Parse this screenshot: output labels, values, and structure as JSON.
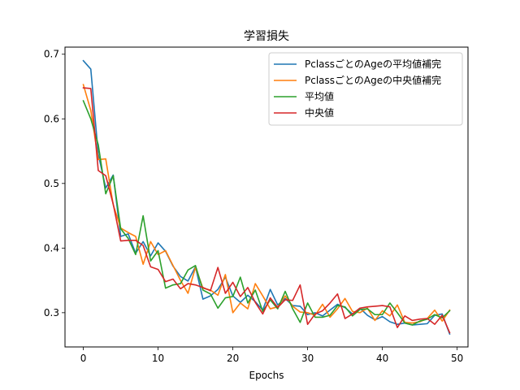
{
  "chart_data": {
    "type": "line",
    "title": "学習損失",
    "xlabel": "Epochs",
    "ylabel": "",
    "xlim": [
      -2.45,
      51.45
    ],
    "ylim": [
      0.247,
      0.711
    ],
    "xticks": [
      0,
      10,
      20,
      30,
      40,
      50
    ],
    "yticks": [
      0.3,
      0.4,
      0.5,
      0.6,
      0.7
    ],
    "grid": false,
    "legend_position": "top-right",
    "x": [
      0,
      1,
      2,
      3,
      4,
      5,
      6,
      7,
      8,
      9,
      10,
      11,
      12,
      13,
      14,
      15,
      16,
      17,
      18,
      19,
      20,
      21,
      22,
      23,
      24,
      25,
      26,
      27,
      28,
      29,
      30,
      31,
      32,
      33,
      34,
      35,
      36,
      37,
      38,
      39,
      40,
      41,
      42,
      43,
      44,
      45,
      46,
      47,
      48,
      49
    ],
    "series": [
      {
        "name": "PclassごとのAgeの平均値補完",
        "color": "#1f77b4",
        "values": [
          0.69,
          0.677,
          0.545,
          0.493,
          0.513,
          0.418,
          0.422,
          0.392,
          0.41,
          0.388,
          0.408,
          0.395,
          0.372,
          0.356,
          0.349,
          0.371,
          0.321,
          0.326,
          0.336,
          0.355,
          0.326,
          0.316,
          0.327,
          0.317,
          0.304,
          0.336,
          0.312,
          0.322,
          0.311,
          0.31,
          0.297,
          0.3,
          0.295,
          0.304,
          0.313,
          0.308,
          0.298,
          0.307,
          0.296,
          0.289,
          0.294,
          0.286,
          0.282,
          0.284,
          0.281,
          0.282,
          0.283,
          0.296,
          0.298,
          0.267
        ]
      },
      {
        "name": "PclassごとのAgeの中央値補完",
        "color": "#ff7f0e",
        "values": [
          0.653,
          0.613,
          0.537,
          0.538,
          0.467,
          0.431,
          0.424,
          0.418,
          0.375,
          0.41,
          0.39,
          0.396,
          0.373,
          0.35,
          0.33,
          0.37,
          0.338,
          0.335,
          0.327,
          0.359,
          0.3,
          0.315,
          0.306,
          0.345,
          0.326,
          0.306,
          0.309,
          0.326,
          0.31,
          0.301,
          0.3,
          0.296,
          0.313,
          0.293,
          0.306,
          0.322,
          0.302,
          0.3,
          0.307,
          0.288,
          0.303,
          0.295,
          0.312,
          0.285,
          0.284,
          0.286,
          0.291,
          0.304,
          0.287,
          0.304
        ]
      },
      {
        "name": "平均値",
        "color": "#2ca02c",
        "values": [
          0.628,
          0.6,
          0.56,
          0.484,
          0.512,
          0.43,
          0.415,
          0.39,
          0.45,
          0.38,
          0.396,
          0.338,
          0.343,
          0.345,
          0.366,
          0.373,
          0.335,
          0.329,
          0.307,
          0.323,
          0.325,
          0.355,
          0.315,
          0.335,
          0.302,
          0.32,
          0.306,
          0.333,
          0.306,
          0.285,
          0.315,
          0.293,
          0.293,
          0.296,
          0.311,
          0.309,
          0.295,
          0.305,
          0.306,
          0.297,
          0.297,
          0.315,
          0.3,
          0.284,
          0.281,
          0.287,
          0.29,
          0.297,
          0.292,
          0.303
        ]
      },
      {
        "name": "中央値",
        "color": "#d62728",
        "values": [
          0.648,
          0.647,
          0.52,
          0.512,
          0.468,
          0.411,
          0.412,
          0.412,
          0.404,
          0.371,
          0.367,
          0.348,
          0.352,
          0.337,
          0.345,
          0.343,
          0.339,
          0.334,
          0.37,
          0.33,
          0.347,
          0.325,
          0.339,
          0.316,
          0.298,
          0.323,
          0.308,
          0.32,
          0.319,
          0.343,
          0.282,
          0.298,
          0.303,
          0.315,
          0.329,
          0.291,
          0.298,
          0.307,
          0.309,
          0.31,
          0.311,
          0.309,
          0.277,
          0.295,
          0.288,
          0.29,
          0.291,
          0.282,
          0.296,
          0.269
        ]
      }
    ]
  }
}
